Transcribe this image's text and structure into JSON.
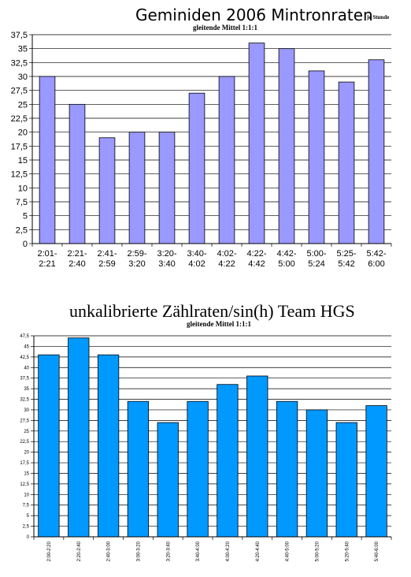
{
  "chart_data": [
    {
      "type": "bar",
      "title": "Geminiden 2006 Mintronraten",
      "title_suffix": "je Stunde",
      "subtitle": "gleitende Mittel 1:1:1",
      "categories": [
        [
          "2:01-",
          "2:21"
        ],
        [
          "2:21-",
          "2:40"
        ],
        [
          "2:41-",
          "2:59"
        ],
        [
          "2:59-",
          "3:20"
        ],
        [
          "3:20-",
          "3:40"
        ],
        [
          "3:40-",
          "4:02"
        ],
        [
          "4:02-",
          "4:22"
        ],
        [
          "4:22-",
          "4:42"
        ],
        [
          "4:42-",
          "5:00"
        ],
        [
          "5:00-",
          "5:24"
        ],
        [
          "5:25-",
          "5:42"
        ],
        [
          "5:42-",
          "6:00"
        ]
      ],
      "values": [
        30,
        25,
        19,
        20,
        20,
        27,
        30,
        36,
        35,
        31,
        29,
        33
      ],
      "ylim": [
        0,
        37.5
      ],
      "yticks": [
        "0",
        "2,5",
        "5",
        "7,5",
        "10",
        "12,5",
        "15",
        "17,5",
        "20",
        "22,5",
        "25",
        "27,5",
        "30",
        "32,5",
        "35",
        "37,5"
      ],
      "grid": true,
      "bar_color": "#9999ff"
    },
    {
      "type": "bar",
      "title": "unkalibrierte Zählraten/sin(h) Team HGS",
      "subtitle": "gleitende Mittel 1:1:1",
      "categories": [
        "2:00-2:20",
        "2:20-2:40",
        "2:40-3:00",
        "3:00-3:20",
        "3:20-3:40",
        "3:40-4:00",
        "4:00-4:20",
        "4:20-4:40",
        "4:40-5:00",
        "5:00-5:20",
        "5:20-5:40",
        "5:40-6:00"
      ],
      "values": [
        43,
        47,
        43,
        32,
        27,
        32,
        36,
        38,
        32,
        30,
        27,
        31
      ],
      "ylim": [
        0,
        47.5
      ],
      "yticks": [
        "0",
        "2,5",
        "5",
        "7,5",
        "10",
        "12,5",
        "15",
        "17,5",
        "20",
        "22,5",
        "25",
        "27,5",
        "30",
        "32,5",
        "35",
        "37,5",
        "40",
        "42,5",
        "45",
        "47,5"
      ],
      "grid": true,
      "bar_color": "#0099ff"
    }
  ]
}
